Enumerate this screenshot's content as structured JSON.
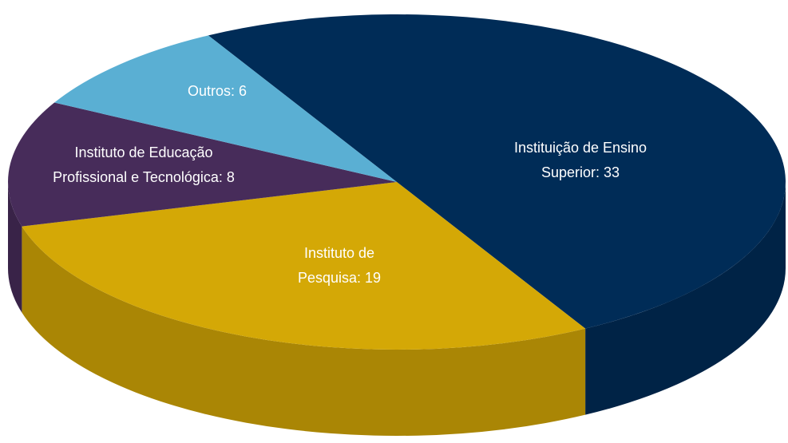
{
  "chart_data": {
    "type": "pie3d",
    "values": [
      33,
      19,
      8,
      6
    ],
    "value_labels": [
      [
        "Instituição de Ensino",
        "Superior: 33"
      ],
      [
        "Instituto de",
        "Pesquisa: 19"
      ],
      [
        "Instituto de Educação",
        "Profissional e Tecnológica: 8"
      ],
      [
        "Outros: 6"
      ]
    ],
    "colors": [
      "#002c57",
      "#d4a806",
      "#472c5a",
      "#5aafd3"
    ]
  }
}
